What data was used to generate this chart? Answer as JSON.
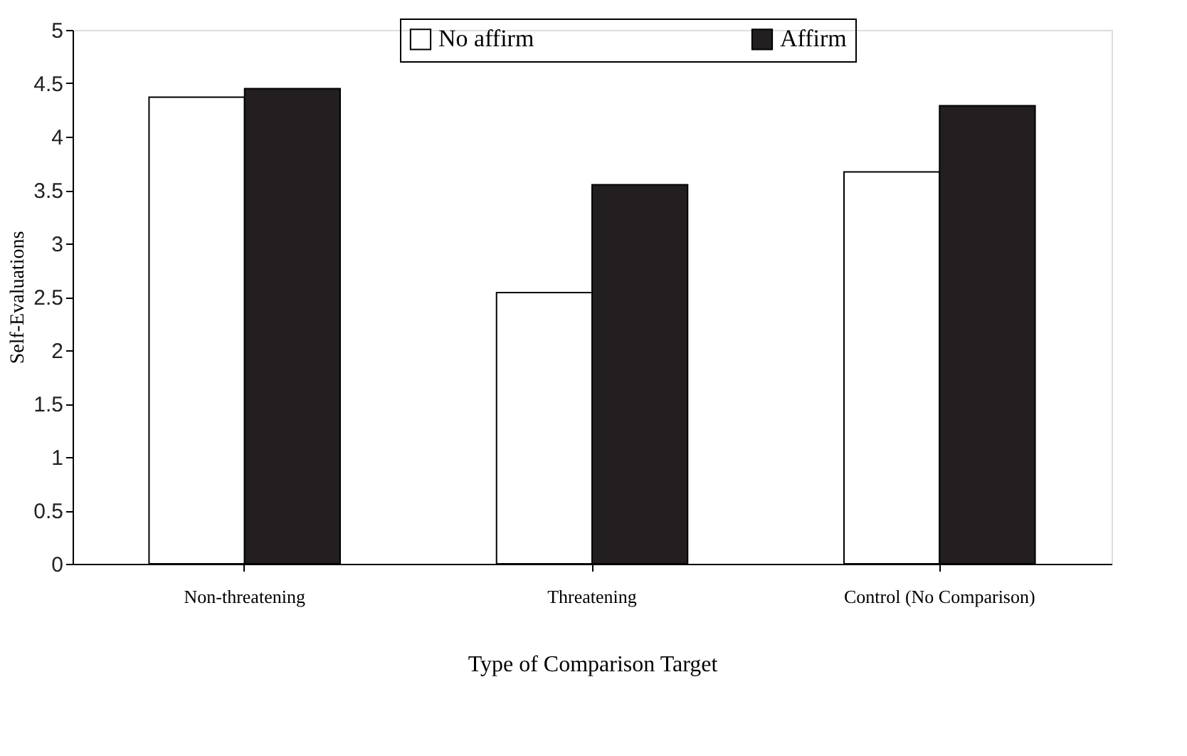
{
  "chart_data": {
    "type": "bar",
    "xlabel": "Type of Comparison Target",
    "ylabel": "Self-Evaluations",
    "categories": [
      "Non-threatening",
      "Threatening",
      "Control (No Comparison)"
    ],
    "series": [
      {
        "name": "No affirm",
        "color": "#ffffff",
        "values": [
          4.37,
          2.54,
          3.67
        ]
      },
      {
        "name": "Affirm",
        "color": "#231f20",
        "values": [
          4.45,
          3.55,
          4.29
        ]
      }
    ],
    "ylim": [
      0,
      5
    ],
    "yticks": [
      0,
      0.5,
      1,
      1.5,
      2,
      2.5,
      3,
      3.5,
      4,
      4.5,
      5
    ],
    "grid": false,
    "legend": "top"
  }
}
